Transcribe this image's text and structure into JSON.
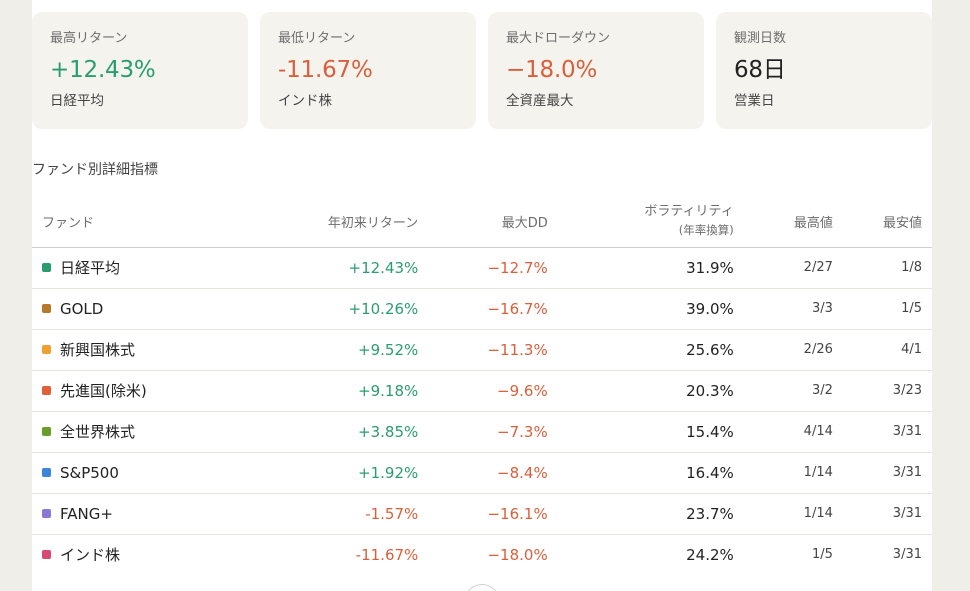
{
  "summary_cards": [
    {
      "label": "最高リターン",
      "value": "+12.43%",
      "sub": "日経平均",
      "tone": "pos"
    },
    {
      "label": "最低リターン",
      "value": "-11.67%",
      "sub": "インド株",
      "tone": "neg"
    },
    {
      "label": "最大ドローダウン",
      "value": "−18.0%",
      "sub": "全資産最大",
      "tone": "neg"
    },
    {
      "label": "観測日数",
      "value": "68日",
      "sub": "営業日",
      "tone": "neu"
    }
  ],
  "section_title": "ファンド別詳細指標",
  "table": {
    "headers": {
      "name": "ファンド",
      "ret": "年初来リターン",
      "dd": "最大DD",
      "vol": "ボラティリティ",
      "vol_sub": "(年率換算)",
      "hi": "最高値",
      "lo": "最安値"
    },
    "rows": [
      {
        "name": "日経平均",
        "color": "#2a9d6f",
        "ret": "+12.43%",
        "ret_tone": "pos",
        "dd": "−12.7%",
        "vol": "31.9%",
        "hi": "2/27",
        "lo": "1/8"
      },
      {
        "name": "GOLD",
        "color": "#b8782a",
        "ret": "+10.26%",
        "ret_tone": "pos",
        "dd": "−16.7%",
        "vol": "39.0%",
        "hi": "3/3",
        "lo": "1/5"
      },
      {
        "name": "新興国株式",
        "color": "#f0a030",
        "ret": "+9.52%",
        "ret_tone": "pos",
        "dd": "−11.3%",
        "vol": "25.6%",
        "hi": "2/26",
        "lo": "4/1"
      },
      {
        "name": "先進国(除米)",
        "color": "#e0603a",
        "ret": "+9.18%",
        "ret_tone": "pos",
        "dd": "−9.6%",
        "vol": "20.3%",
        "hi": "3/2",
        "lo": "3/23"
      },
      {
        "name": "全世界株式",
        "color": "#6a9e2a",
        "ret": "+3.85%",
        "ret_tone": "pos",
        "dd": "−7.3%",
        "vol": "15.4%",
        "hi": "4/14",
        "lo": "3/31"
      },
      {
        "name": "S&P500",
        "color": "#3a86d8",
        "ret": "+1.92%",
        "ret_tone": "pos",
        "dd": "−8.4%",
        "vol": "16.4%",
        "hi": "1/14",
        "lo": "3/31"
      },
      {
        "name": "FANG+",
        "color": "#8a78d4",
        "ret": "-1.57%",
        "ret_tone": "neg",
        "dd": "−16.1%",
        "vol": "23.7%",
        "hi": "1/14",
        "lo": "3/31"
      },
      {
        "name": "インド株",
        "color": "#d84a72",
        "ret": "-11.67%",
        "ret_tone": "neg",
        "dd": "−18.0%",
        "vol": "24.2%",
        "hi": "1/5",
        "lo": "3/31"
      }
    ]
  }
}
